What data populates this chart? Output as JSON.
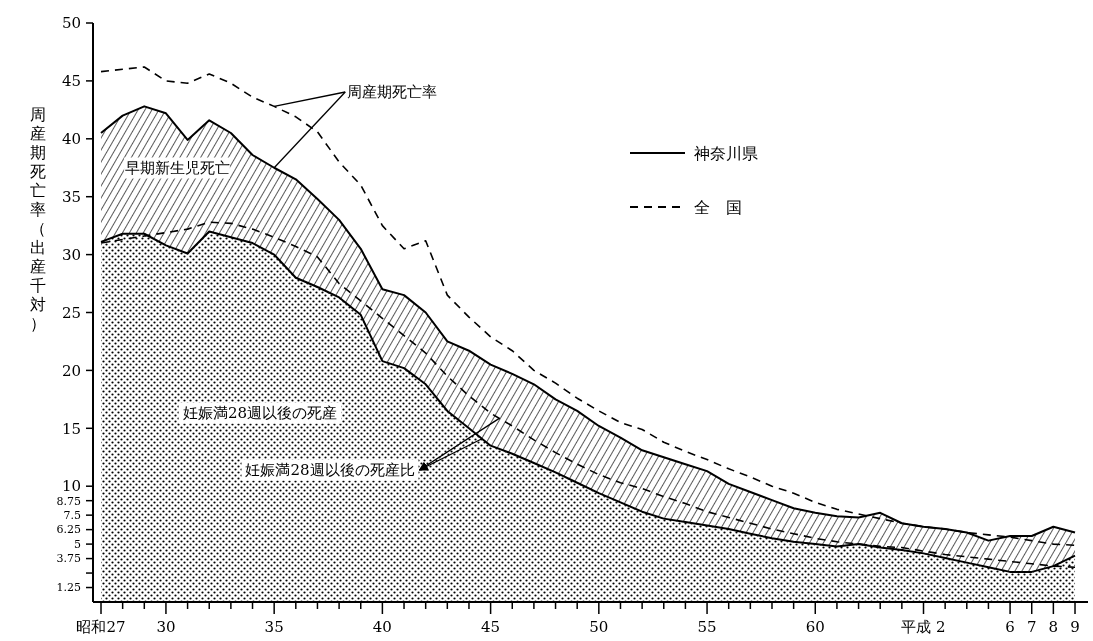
{
  "chart_data": {
    "type": "area",
    "ylabel": "周産期死亡率（出産千対）",
    "stacked": true,
    "legend": "top right",
    "categories": [
      "昭和27",
      null,
      null,
      "30",
      null,
      null,
      null,
      null,
      "35",
      null,
      null,
      null,
      null,
      "40",
      null,
      null,
      null,
      null,
      "45",
      null,
      null,
      null,
      null,
      "50",
      null,
      null,
      null,
      null,
      "55",
      null,
      null,
      null,
      null,
      "60",
      null,
      null,
      null,
      null,
      "平成 2",
      null,
      null,
      null,
      "6",
      "7",
      "8",
      "9"
    ],
    "ylim": [
      0,
      50
    ],
    "yticks": [
      {
        "value": 1.25,
        "label": "1.25"
      },
      {
        "value": 2.5,
        "label": null
      },
      {
        "value": 3.75,
        "label": "3.75"
      },
      {
        "value": 5,
        "label": "5"
      },
      {
        "value": 6.25,
        "label": "6.25"
      },
      {
        "value": 7.5,
        "label": "7.5"
      },
      {
        "value": 8.75,
        "label": "8.75"
      },
      10,
      15,
      20,
      25,
      30,
      35,
      40,
      45,
      50
    ],
    "series": [
      {
        "name": "神奈川県",
        "color": "#000000",
        "line_style": "solid",
        "values": [
          31.1,
          31.8,
          31.8,
          30.8,
          30.1,
          32.0,
          31.5,
          31.0,
          30.0,
          28.0,
          27.2,
          26.3,
          24.8,
          20.8,
          20.2,
          18.8,
          16.5,
          15.0,
          13.5,
          12.8,
          12.0,
          11.2,
          10.3,
          9.4,
          8.6,
          7.8,
          7.2,
          6.9,
          6.6,
          6.3,
          5.9,
          5.5,
          5.2,
          5.0,
          4.8,
          5.0,
          4.7,
          4.5,
          4.2,
          3.8,
          3.4,
          3.0,
          2.6,
          2.6,
          3.1,
          4.0
        ]
      },
      {
        "color": "#000000",
        "line_style": "solid",
        "values": [
          9.4,
          10.2,
          11.0,
          11.4,
          9.8,
          9.6,
          9.0,
          7.6,
          7.5,
          8.5,
          7.6,
          6.7,
          5.7,
          6.2,
          6.3,
          6.2,
          6.0,
          6.7,
          7.0,
          6.9,
          6.8,
          6.3,
          6.2,
          5.8,
          5.6,
          5.3,
          5.3,
          5.0,
          4.7,
          3.9,
          3.6,
          3.3,
          2.9,
          2.7,
          2.6,
          2.3,
          3.0,
          2.3,
          2.3,
          2.5,
          2.6,
          2.3,
          3.1,
          3.1,
          3.4,
          2.0
        ]
      },
      {
        "type": "line",
        "name": "全　国",
        "color": "#000000",
        "line_style": "dashed",
        "values": [
          45.8,
          46.0,
          46.2,
          45.0,
          44.8,
          45.6,
          44.8,
          43.6,
          42.8,
          41.9,
          40.6,
          38.0,
          36.0,
          32.5,
          30.5,
          31.2,
          26.5,
          24.6,
          22.9,
          21.7,
          20.0,
          18.9,
          17.6,
          16.5,
          15.5,
          14.9,
          13.8,
          13.0,
          12.3,
          11.5,
          10.8,
          10.0,
          9.4,
          8.6,
          8.0,
          7.6,
          7.2,
          6.8,
          6.5,
          6.3,
          6.0,
          5.8,
          5.6,
          5.3,
          5.0,
          4.9
        ]
      },
      {
        "type": "line",
        "color": "#000000",
        "line_style": "dashed",
        "values": [
          31.0,
          31.3,
          31.6,
          31.9,
          32.2,
          32.8,
          32.7,
          32.2,
          31.5,
          30.7,
          29.8,
          27.5,
          26.0,
          24.5,
          23.0,
          21.5,
          19.5,
          17.8,
          16.3,
          15.2,
          14.0,
          12.9,
          11.9,
          11.0,
          10.3,
          9.8,
          9.1,
          8.5,
          7.8,
          7.3,
          6.8,
          6.3,
          5.9,
          5.5,
          5.2,
          5.0,
          4.8,
          4.7,
          4.4,
          4.1,
          3.9,
          3.7,
          3.5,
          3.3,
          3.1,
          3.0
        ]
      }
    ],
    "annotations": [
      "早期新生児死亡",
      "妊娠満28週以後の死産",
      {
        "text": "周産期死亡率",
        "x": "35",
        "y": 42.8
      },
      "妊娠満28週以後の死産比"
    ]
  }
}
